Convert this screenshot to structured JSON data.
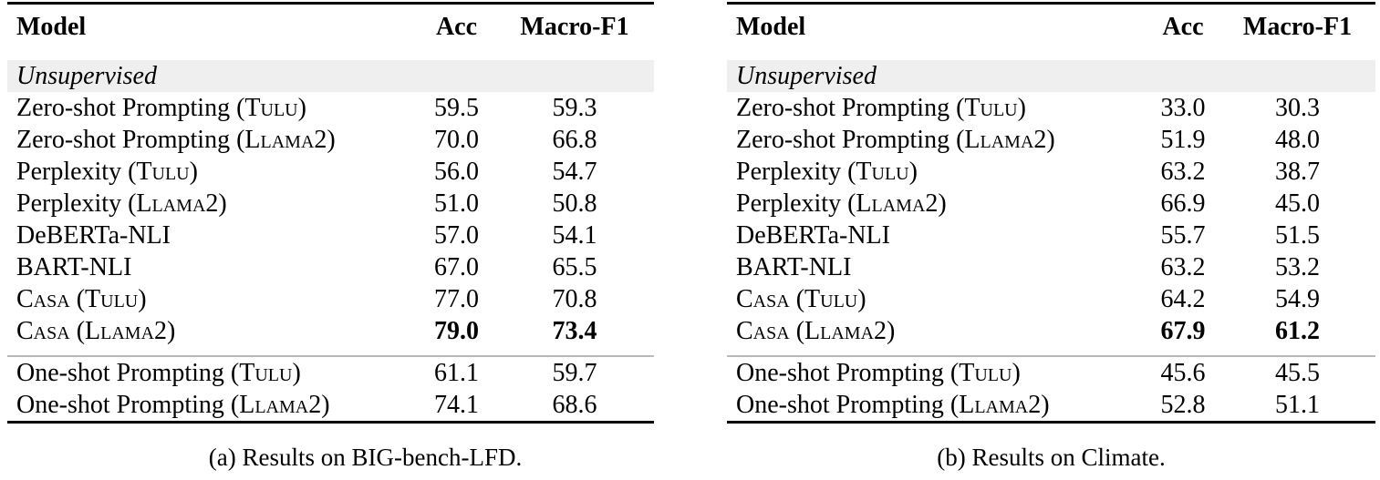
{
  "figure": {
    "colors": {
      "background": "#ffffff",
      "text": "#000000",
      "rule": "#000000",
      "section_band": "#efefef",
      "group_separator": "#b9b9b9"
    },
    "panels": [
      {
        "caption": "(a) Results on BIG-bench-LFD.",
        "headers": {
          "model": "Model",
          "acc": "Acc",
          "f1": "Macro-F1"
        },
        "section_label": "Unsupervised",
        "unsupervised_rows": [
          {
            "t1": "Zero-shot Prompting (",
            "c1": "Tulu",
            "t2": ")",
            "c2": "",
            "t3": "",
            "acc": "59.5",
            "f1": "59.3",
            "bold": false
          },
          {
            "t1": "Zero-shot Prompting (",
            "c1": "Llama2",
            "t2": ")",
            "c2": "",
            "t3": "",
            "acc": "70.0",
            "f1": "66.8",
            "bold": false
          },
          {
            "t1": "Perplexity (",
            "c1": "Tulu",
            "t2": ")",
            "c2": "",
            "t3": "",
            "acc": "56.0",
            "f1": "54.7",
            "bold": false
          },
          {
            "t1": "Perplexity (",
            "c1": "Llama2",
            "t2": ")",
            "c2": "",
            "t3": "",
            "acc": "51.0",
            "f1": "50.8",
            "bold": false
          },
          {
            "t1": "DeBERTa-NLI",
            "c1": "",
            "t2": "",
            "c2": "",
            "t3": "",
            "acc": "57.0",
            "f1": "54.1",
            "bold": false
          },
          {
            "t1": "BART-NLI",
            "c1": "",
            "t2": "",
            "c2": "",
            "t3": "",
            "acc": "67.0",
            "f1": "65.5",
            "bold": false
          },
          {
            "t1": "",
            "c1": "Casa",
            "t2": " (",
            "c2": "Tulu",
            "t3": ")",
            "acc": "77.0",
            "f1": "70.8",
            "bold": false
          },
          {
            "t1": "",
            "c1": "Casa",
            "t2": " (",
            "c2": "Llama2",
            "t3": ")",
            "acc": "79.0",
            "f1": "73.4",
            "bold": true
          }
        ],
        "oneshot_rows": [
          {
            "t1": "One-shot Prompting (",
            "c1": "Tulu",
            "t2": ")",
            "c2": "",
            "t3": "",
            "acc": "61.1",
            "f1": "59.7",
            "bold": false
          },
          {
            "t1": "One-shot Prompting (",
            "c1": "Llama2",
            "t2": ")",
            "c2": "",
            "t3": "",
            "acc": "74.1",
            "f1": "68.6",
            "bold": false
          }
        ]
      },
      {
        "caption": "(b) Results on Climate.",
        "headers": {
          "model": "Model",
          "acc": "Acc",
          "f1": "Macro-F1"
        },
        "section_label": "Unsupervised",
        "unsupervised_rows": [
          {
            "t1": "Zero-shot Prompting (",
            "c1": "Tulu",
            "t2": ")",
            "c2": "",
            "t3": "",
            "acc": "33.0",
            "f1": "30.3",
            "bold": false
          },
          {
            "t1": "Zero-shot Prompting (",
            "c1": "Llama2",
            "t2": ")",
            "c2": "",
            "t3": "",
            "acc": "51.9",
            "f1": "48.0",
            "bold": false
          },
          {
            "t1": "Perplexity (",
            "c1": "Tulu",
            "t2": ")",
            "c2": "",
            "t3": "",
            "acc": "63.2",
            "f1": "38.7",
            "bold": false
          },
          {
            "t1": "Perplexity (",
            "c1": "Llama2",
            "t2": ")",
            "c2": "",
            "t3": "",
            "acc": "66.9",
            "f1": "45.0",
            "bold": false
          },
          {
            "t1": "DeBERTa-NLI",
            "c1": "",
            "t2": "",
            "c2": "",
            "t3": "",
            "acc": "55.7",
            "f1": "51.5",
            "bold": false
          },
          {
            "t1": "BART-NLI",
            "c1": "",
            "t2": "",
            "c2": "",
            "t3": "",
            "acc": "63.2",
            "f1": "53.2",
            "bold": false
          },
          {
            "t1": "",
            "c1": "Casa",
            "t2": " (",
            "c2": "Tulu",
            "t3": ")",
            "acc": "64.2",
            "f1": "54.9",
            "bold": false
          },
          {
            "t1": "",
            "c1": "Casa",
            "t2": " (",
            "c2": "Llama2",
            "t3": ")",
            "acc": "67.9",
            "f1": "61.2",
            "bold": true
          }
        ],
        "oneshot_rows": [
          {
            "t1": "One-shot Prompting (",
            "c1": "Tulu",
            "t2": ")",
            "c2": "",
            "t3": "",
            "acc": "45.6",
            "f1": "45.5",
            "bold": false
          },
          {
            "t1": "One-shot Prompting (",
            "c1": "Llama2",
            "t2": ")",
            "c2": "",
            "t3": "",
            "acc": "52.8",
            "f1": "51.1",
            "bold": false
          }
        ]
      }
    ]
  }
}
